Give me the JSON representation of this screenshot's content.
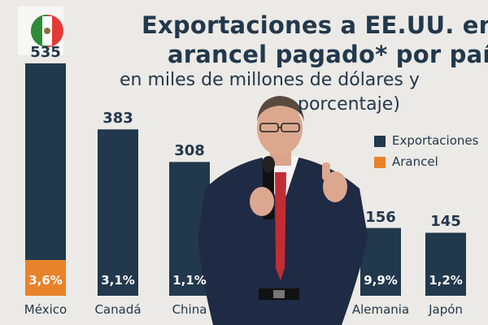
{
  "slide": {
    "title_line1": "Exportaciones a EE.UU. en",
    "title_line2": "arancel pagado* por país",
    "subtitle_line1": "en miles de millones de dólares y",
    "subtitle_line2": "porcentaje)"
  },
  "colors": {
    "exports": "#22384c",
    "tariff": "#e8822b",
    "background": "#eceae6"
  },
  "chart_data": {
    "type": "bar",
    "categories": [
      "México",
      "Canadá",
      "China",
      "Alemania",
      "Japón"
    ],
    "series": [
      {
        "name": "Exportaciones",
        "values": [
          535,
          383,
          308,
          156,
          145
        ]
      },
      {
        "name": "Arancel",
        "values": [
          3.6,
          3.1,
          1.1,
          9.9,
          1.2
        ]
      }
    ],
    "value_labels": [
      "535",
      "383",
      "308",
      "156",
      "145"
    ],
    "pct_labels": [
      "3,6%",
      "3,1%",
      "1,1%",
      "9,9%",
      "1,2%"
    ],
    "legend": [
      "Exportaciones",
      "Arancel"
    ],
    "ylim": [
      0,
      535
    ],
    "grid": false,
    "legend_position": "right"
  }
}
